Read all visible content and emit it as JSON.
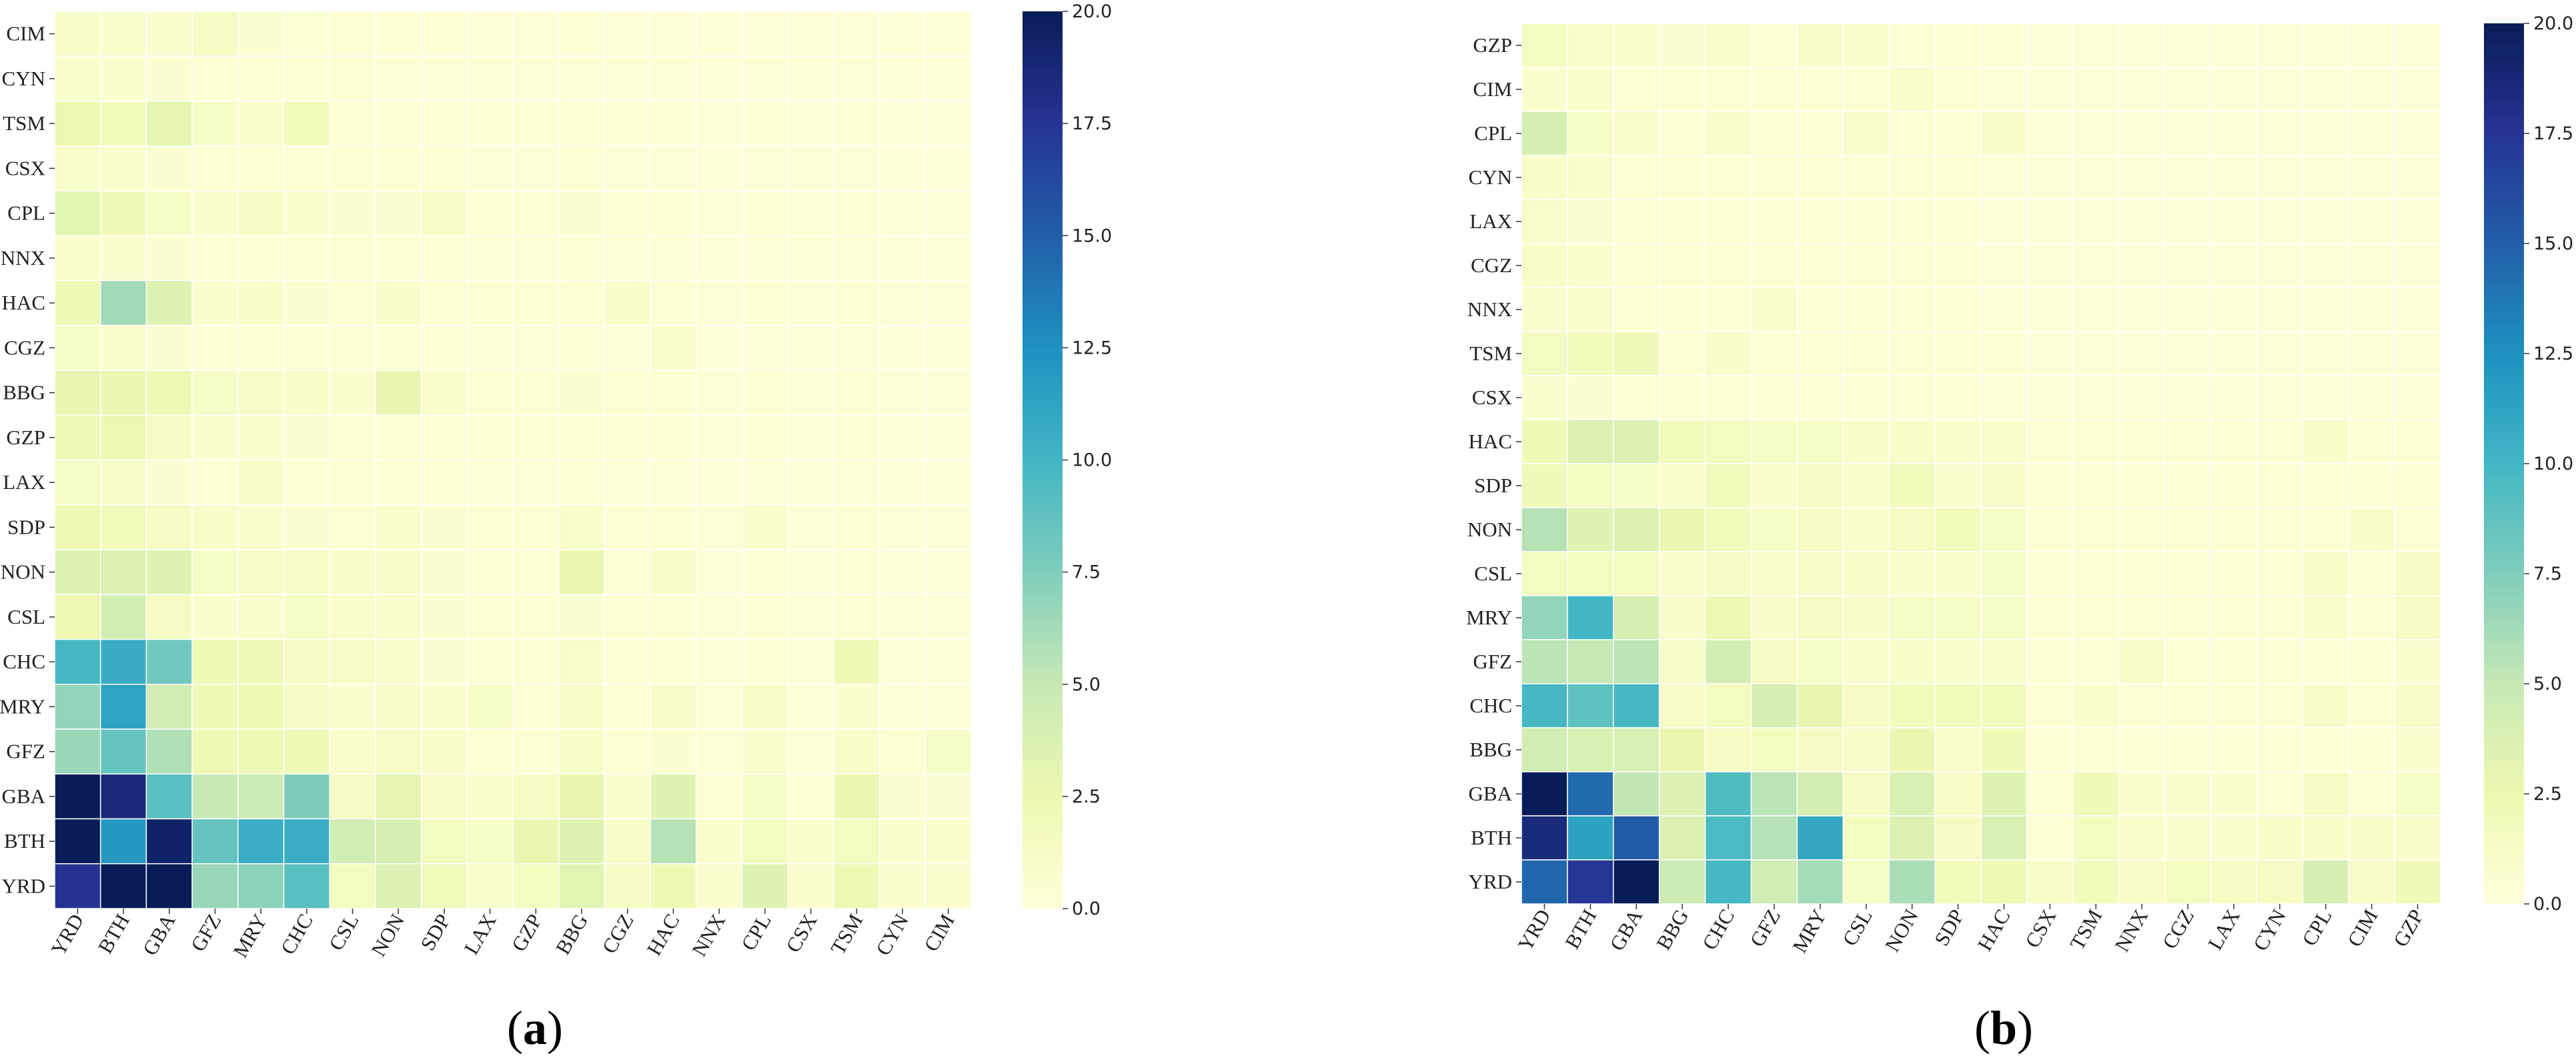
{
  "colors": {
    "scale": [
      "#ffffd9",
      "#edf8b1",
      "#c7e9b4",
      "#7fcdbb",
      "#41b6c4",
      "#1d91c0",
      "#225ea8",
      "#253494",
      "#081d58"
    ],
    "grid_line": "#ffffff",
    "text": "#222222"
  },
  "panel_a": {
    "label": "a"
  },
  "panel_b": {
    "label": "b"
  },
  "chart_data": [
    {
      "type": "heatmap",
      "id": "a",
      "title": "",
      "cmap": "YlGnBu",
      "vmin": 0,
      "vmax": 20,
      "colorbar_ticks": [
        "0.0",
        "2.5",
        "5.0",
        "7.5",
        "10.0",
        "12.5",
        "15.0",
        "17.5",
        "20.0"
      ],
      "x_labels": [
        "YRD",
        "BTH",
        "GBA",
        "GFZ",
        "MRY",
        "CHC",
        "CSL",
        "NON",
        "SDP",
        "LAX",
        "GZP",
        "BBG",
        "CGZ",
        "HAC",
        "NNX",
        "CPL",
        "CSX",
        "TSM",
        "CYN",
        "CIM"
      ],
      "y_labels": [
        "CIM",
        "CYN",
        "TSM",
        "CSX",
        "CPL",
        "NNX",
        "HAC",
        "CGZ",
        "BBG",
        "GZP",
        "LAX",
        "SDP",
        "NON",
        "CSL",
        "CHC",
        "MRY",
        "GFZ",
        "GBA",
        "BTH",
        "YRD"
      ],
      "values": [
        [
          1.0,
          0.8,
          0.6,
          1.3,
          0.5,
          0.4,
          0.3,
          0.3,
          0.3,
          0.2,
          0.2,
          0.3,
          0.2,
          0.2,
          0.1,
          0.2,
          0.2,
          0.2,
          0.1,
          0.1
        ],
        [
          0.8,
          0.7,
          0.5,
          0.4,
          0.4,
          0.3,
          0.3,
          0.2,
          0.2,
          0.2,
          0.2,
          0.2,
          0.2,
          0.2,
          0.1,
          0.2,
          0.1,
          0.2,
          0.1,
          0.1
        ],
        [
          2.5,
          1.8,
          3.0,
          1.2,
          0.6,
          1.8,
          0.4,
          0.4,
          0.4,
          0.3,
          0.3,
          0.4,
          0.3,
          0.3,
          0.2,
          0.3,
          0.2,
          0.3,
          0.2,
          0.2
        ],
        [
          0.9,
          0.8,
          0.5,
          0.4,
          0.3,
          0.3,
          0.3,
          0.3,
          0.3,
          0.2,
          0.2,
          0.3,
          0.2,
          0.2,
          0.1,
          0.2,
          0.2,
          0.2,
          0.1,
          0.1
        ],
        [
          3.2,
          2.0,
          1.2,
          0.8,
          1.3,
          0.6,
          0.5,
          0.5,
          1.1,
          0.3,
          0.3,
          0.5,
          0.3,
          0.3,
          0.2,
          0.3,
          0.2,
          0.3,
          0.2,
          0.2
        ],
        [
          0.8,
          0.7,
          0.5,
          0.4,
          0.3,
          0.3,
          0.3,
          0.3,
          0.3,
          0.2,
          0.2,
          0.3,
          0.2,
          0.2,
          0.1,
          0.2,
          0.2,
          0.2,
          0.1,
          0.1
        ],
        [
          2.2,
          6.3,
          3.5,
          0.6,
          1.0,
          0.5,
          0.4,
          1.0,
          0.4,
          0.3,
          0.3,
          0.4,
          1.0,
          0.4,
          0.2,
          0.3,
          0.2,
          0.3,
          0.2,
          0.2
        ],
        [
          1.2,
          0.9,
          0.5,
          0.4,
          0.4,
          0.3,
          0.3,
          0.3,
          0.3,
          0.2,
          0.2,
          0.3,
          0.2,
          0.8,
          0.1,
          0.2,
          0.2,
          0.2,
          0.1,
          0.1
        ],
        [
          2.8,
          2.6,
          2.2,
          1.2,
          1.1,
          1.0,
          0.6,
          2.8,
          0.9,
          0.3,
          0.3,
          0.5,
          0.3,
          0.3,
          0.2,
          0.3,
          0.2,
          0.3,
          0.2,
          0.2
        ],
        [
          2.0,
          2.5,
          1.3,
          0.6,
          0.6,
          0.5,
          0.4,
          0.4,
          0.4,
          0.3,
          0.3,
          0.4,
          0.3,
          0.3,
          0.2,
          0.3,
          0.2,
          0.3,
          0.2,
          0.2
        ],
        [
          1.2,
          1.0,
          0.5,
          0.4,
          1.1,
          0.3,
          0.3,
          0.3,
          0.3,
          0.2,
          0.2,
          0.3,
          0.2,
          0.2,
          0.1,
          0.2,
          0.2,
          0.2,
          0.1,
          0.1
        ],
        [
          2.4,
          1.8,
          1.3,
          1.0,
          0.6,
          0.5,
          0.4,
          0.8,
          0.5,
          0.3,
          0.3,
          0.9,
          0.3,
          0.3,
          0.2,
          0.8,
          0.2,
          0.3,
          0.2,
          0.2
        ],
        [
          3.4,
          3.6,
          3.3,
          1.2,
          1.0,
          1.1,
          1.0,
          1.0,
          0.5,
          0.3,
          0.3,
          2.6,
          0.3,
          1.0,
          0.2,
          0.3,
          0.2,
          0.3,
          0.2,
          0.2
        ],
        [
          2.4,
          4.2,
          1.4,
          0.7,
          0.9,
          1.2,
          0.8,
          0.9,
          0.5,
          0.3,
          0.3,
          0.5,
          0.3,
          0.3,
          0.2,
          0.3,
          0.2,
          0.3,
          0.2,
          0.2
        ],
        [
          9.8,
          10.7,
          8.0,
          2.3,
          2.0,
          1.3,
          1.1,
          0.7,
          0.5,
          0.4,
          0.4,
          0.9,
          0.3,
          0.4,
          0.2,
          0.4,
          0.2,
          2.2,
          0.2,
          0.2
        ],
        [
          6.8,
          11.3,
          4.3,
          2.2,
          2.2,
          1.3,
          0.6,
          1.0,
          0.6,
          1.2,
          0.4,
          1.0,
          0.4,
          1.0,
          0.2,
          1.1,
          0.2,
          0.6,
          0.2,
          0.2
        ],
        [
          6.6,
          8.6,
          5.8,
          2.3,
          2.2,
          2.2,
          0.8,
          1.1,
          1.0,
          0.4,
          0.4,
          1.0,
          0.4,
          0.5,
          0.2,
          0.6,
          0.2,
          1.0,
          0.4,
          1.2
        ],
        [
          20.0,
          18.7,
          9.0,
          5.0,
          4.6,
          7.6,
          1.4,
          3.0,
          1.1,
          0.6,
          1.3,
          2.8,
          0.6,
          3.4,
          0.3,
          1.2,
          0.3,
          2.6,
          0.5,
          0.5
        ],
        [
          20.0,
          12.0,
          19.3,
          8.6,
          10.6,
          10.6,
          4.4,
          4.0,
          1.6,
          1.2,
          2.6,
          3.4,
          1.0,
          5.6,
          0.8,
          1.6,
          0.8,
          1.6,
          0.6,
          0.6
        ],
        [
          17.6,
          20.0,
          20.0,
          6.6,
          7.0,
          9.0,
          1.6,
          3.6,
          1.8,
          0.8,
          1.6,
          3.2,
          1.4,
          2.2,
          0.6,
          3.4,
          0.6,
          2.4,
          0.6,
          0.6
        ]
      ]
    },
    {
      "type": "heatmap",
      "id": "b",
      "title": "",
      "cmap": "YlGnBu",
      "vmin": 0,
      "vmax": 20,
      "colorbar_ticks": [
        "0.0",
        "2.5",
        "5.0",
        "7.5",
        "10.0",
        "12.5",
        "15.0",
        "17.5",
        "20.0"
      ],
      "x_labels": [
        "YRD",
        "BTH",
        "GBA",
        "BBG",
        "CHC",
        "GFZ",
        "MRY",
        "CSL",
        "NON",
        "SDP",
        "HAC",
        "CSX",
        "TSM",
        "NNX",
        "CGZ",
        "LAX",
        "CYN",
        "CPL",
        "CIM",
        "GZP"
      ],
      "y_labels": [
        "GZP",
        "CIM",
        "CPL",
        "CYN",
        "LAX",
        "CGZ",
        "NNX",
        "TSM",
        "CSX",
        "HAC",
        "SDP",
        "NON",
        "CSL",
        "MRY",
        "GFZ",
        "CHC",
        "BBG",
        "GBA",
        "BTH",
        "YRD"
      ],
      "values": [
        [
          1.6,
          0.9,
          0.8,
          0.5,
          0.8,
          0.4,
          1.0,
          0.8,
          0.3,
          0.3,
          0.3,
          0.2,
          0.2,
          0.2,
          0.2,
          0.2,
          0.2,
          0.2,
          0.2,
          0.2
        ],
        [
          0.7,
          0.8,
          0.4,
          0.3,
          0.3,
          0.3,
          0.3,
          0.3,
          0.8,
          0.3,
          0.2,
          0.2,
          0.2,
          0.2,
          0.2,
          0.2,
          0.2,
          0.2,
          0.2,
          0.2
        ],
        [
          4.0,
          1.2,
          0.9,
          0.4,
          0.9,
          0.4,
          0.4,
          0.9,
          0.4,
          0.3,
          1.0,
          0.2,
          0.2,
          0.2,
          0.2,
          0.2,
          0.2,
          0.2,
          0.2,
          0.2
        ],
        [
          1.0,
          0.9,
          0.4,
          0.3,
          0.3,
          0.3,
          0.3,
          0.3,
          0.3,
          0.3,
          0.2,
          0.2,
          0.2,
          0.2,
          0.2,
          0.2,
          0.2,
          0.2,
          0.2,
          0.2
        ],
        [
          0.9,
          0.5,
          0.4,
          0.3,
          0.3,
          0.3,
          0.3,
          0.3,
          0.3,
          0.3,
          0.2,
          0.2,
          0.2,
          0.2,
          0.2,
          0.2,
          0.2,
          0.2,
          0.2,
          0.2
        ],
        [
          1.0,
          0.6,
          0.4,
          0.3,
          0.3,
          0.3,
          0.3,
          0.3,
          0.3,
          0.3,
          0.2,
          0.2,
          0.2,
          0.2,
          0.2,
          0.2,
          0.2,
          0.2,
          0.2,
          0.2
        ],
        [
          0.7,
          0.8,
          0.4,
          0.3,
          0.3,
          0.8,
          0.3,
          0.3,
          0.3,
          0.3,
          0.2,
          0.2,
          0.2,
          0.2,
          0.2,
          0.2,
          0.2,
          0.2,
          0.2,
          0.2
        ],
        [
          1.5,
          1.8,
          2.0,
          0.4,
          1.0,
          0.4,
          0.4,
          0.3,
          0.3,
          0.3,
          0.3,
          0.2,
          0.2,
          0.2,
          0.2,
          0.2,
          0.2,
          0.2,
          0.2,
          0.2
        ],
        [
          0.7,
          0.5,
          0.4,
          0.3,
          0.3,
          0.3,
          0.3,
          0.3,
          0.3,
          0.3,
          0.2,
          0.2,
          0.2,
          0.2,
          0.2,
          0.2,
          0.2,
          0.2,
          0.2,
          0.2
        ],
        [
          2.2,
          3.6,
          3.6,
          1.8,
          1.6,
          1.2,
          1.2,
          1.0,
          1.0,
          0.8,
          0.8,
          0.4,
          0.4,
          0.4,
          0.4,
          0.4,
          0.4,
          1.0,
          0.4,
          0.4
        ],
        [
          2.0,
          1.5,
          1.2,
          0.8,
          1.8,
          0.8,
          1.3,
          0.8,
          1.8,
          0.6,
          1.0,
          0.3,
          0.3,
          0.3,
          0.3,
          0.3,
          0.3,
          0.4,
          0.3,
          0.3
        ],
        [
          5.6,
          3.4,
          3.6,
          2.6,
          1.8,
          1.2,
          1.4,
          0.8,
          1.4,
          1.8,
          1.2,
          0.4,
          0.4,
          0.4,
          0.4,
          0.4,
          0.4,
          0.4,
          1.0,
          0.4
        ],
        [
          1.6,
          1.6,
          1.6,
          0.8,
          1.4,
          0.8,
          1.0,
          1.0,
          0.8,
          0.8,
          1.2,
          0.4,
          0.4,
          0.4,
          0.4,
          0.4,
          0.4,
          1.0,
          0.4,
          1.3
        ],
        [
          6.8,
          10.0,
          4.0,
          1.0,
          2.4,
          1.0,
          1.4,
          1.0,
          1.2,
          1.2,
          1.2,
          0.4,
          0.4,
          0.4,
          0.4,
          0.4,
          0.4,
          0.6,
          0.4,
          1.3
        ],
        [
          5.4,
          5.0,
          5.4,
          1.0,
          4.2,
          1.4,
          1.2,
          0.8,
          1.0,
          0.8,
          0.8,
          0.4,
          0.4,
          1.0,
          0.4,
          0.4,
          0.4,
          0.4,
          0.4,
          0.6
        ],
        [
          9.8,
          8.8,
          9.8,
          1.0,
          1.6,
          4.0,
          2.8,
          1.4,
          1.8,
          1.8,
          1.8,
          0.4,
          0.8,
          0.4,
          0.4,
          0.4,
          0.4,
          1.0,
          0.4,
          1.0
        ],
        [
          4.4,
          3.8,
          3.8,
          2.6,
          1.4,
          1.6,
          1.4,
          1.0,
          2.6,
          0.8,
          2.0,
          0.4,
          0.4,
          0.4,
          0.4,
          0.4,
          0.4,
          0.4,
          0.4,
          0.6
        ],
        [
          20.0,
          14.4,
          5.2,
          3.6,
          9.4,
          5.4,
          4.2,
          1.4,
          3.8,
          1.0,
          3.4,
          0.4,
          2.0,
          0.6,
          0.6,
          0.6,
          0.4,
          1.4,
          0.4,
          1.2
        ],
        [
          18.6,
          11.4,
          15.2,
          3.6,
          9.6,
          5.6,
          11.0,
          1.6,
          3.6,
          1.4,
          3.8,
          0.4,
          1.6,
          0.8,
          0.6,
          0.6,
          1.0,
          1.0,
          1.0,
          1.0
        ],
        [
          14.6,
          17.4,
          20.0,
          4.6,
          9.8,
          4.4,
          6.2,
          1.2,
          6.0,
          1.8,
          2.2,
          1.0,
          1.8,
          1.0,
          1.6,
          1.4,
          1.4,
          4.0,
          1.0,
          2.0
        ]
      ]
    }
  ]
}
